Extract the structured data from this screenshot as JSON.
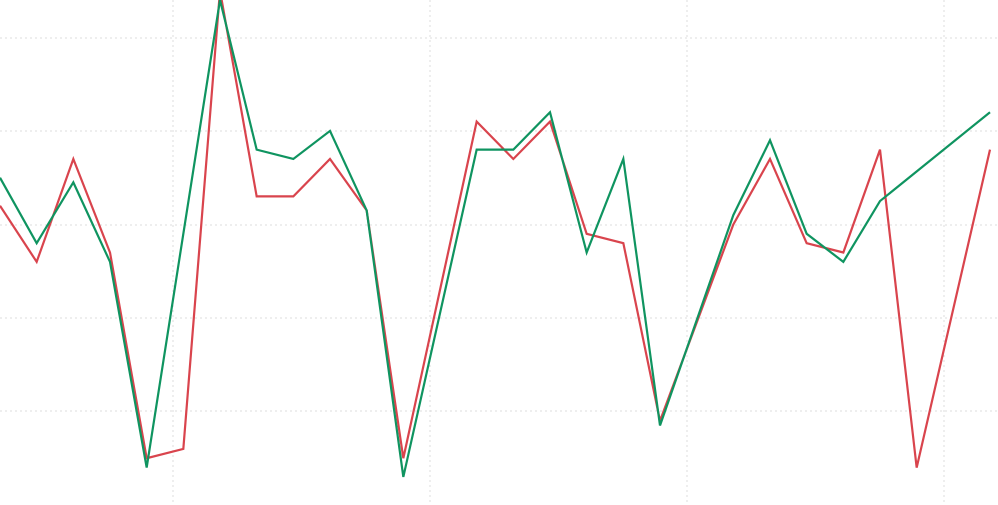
{
  "chart_data": {
    "type": "line",
    "title": "",
    "xlabel": "",
    "ylabel": "",
    "grid": true,
    "legend": "none",
    "x": [
      0,
      1,
      2,
      3,
      4,
      5,
      6,
      7,
      8,
      9,
      10,
      11,
      12,
      13,
      14,
      15,
      16,
      17,
      18,
      19,
      20,
      21,
      22,
      23,
      24,
      25,
      26,
      27
    ],
    "xlim": [
      0,
      27
    ],
    "ylim": [
      -0.4,
      5.0
    ],
    "series": [
      {
        "color": "#d9444d",
        "values": [
          2.8,
          2.2,
          3.3,
          2.3,
          0.1,
          0.2,
          5.1,
          2.9,
          2.9,
          3.3,
          2.75,
          0.1,
          3.7,
          3.3,
          3.7,
          2.5,
          2.4,
          0.5,
          2.6,
          3.3,
          2.4,
          2.3,
          3.4,
          0.0,
          3.4
        ],
        "x_values": [
          0,
          1,
          2,
          3,
          4,
          5,
          6,
          7,
          8,
          9,
          10,
          11,
          13,
          14,
          15,
          16,
          17,
          18,
          20,
          21,
          22,
          23,
          24,
          25,
          27
        ]
      },
      {
        "color": "#0f9460",
        "values": [
          3.1,
          2.4,
          3.05,
          2.2,
          0.0,
          5.0,
          3.4,
          3.3,
          3.6,
          2.75,
          -0.1,
          3.4,
          3.4,
          3.8,
          2.3,
          3.3,
          0.45,
          2.7,
          3.5,
          2.5,
          2.2,
          2.85,
          3.8
        ],
        "x_values": [
          0,
          1,
          2,
          3,
          4,
          6,
          7,
          8,
          9,
          10,
          11,
          13,
          14,
          15,
          16,
          17,
          18,
          20,
          21,
          22,
          23,
          24,
          27
        ]
      }
    ]
  }
}
